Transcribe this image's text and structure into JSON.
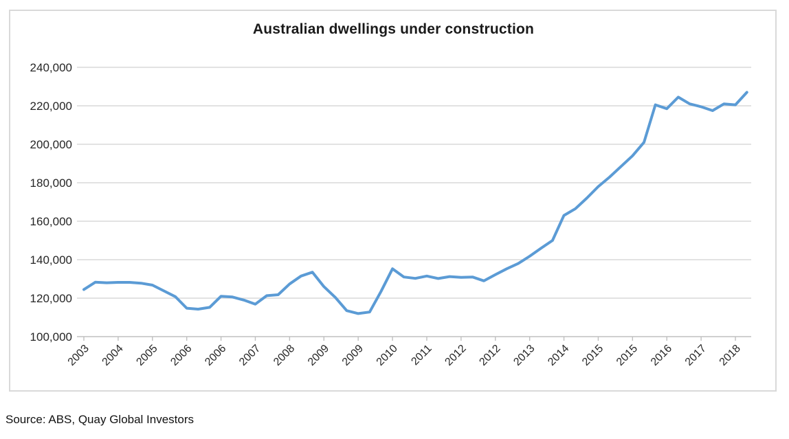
{
  "title": "Australian dwellings under construction",
  "source": "Source: ABS, Quay Global Investors",
  "colors": {
    "line": "#5B9BD5",
    "gridline": "#D9D9D9",
    "axis": "#BFBFBF",
    "frame": "#D9D9D9",
    "title_text": "#1a1a1a",
    "label_text": "#262626"
  },
  "chart_data": {
    "type": "line",
    "title": "Australian dwellings under construction",
    "xlabel": "",
    "ylabel": "",
    "ylim": [
      100000,
      240000
    ],
    "y_tick_step": 20000,
    "y_tick_labels": [
      "240,000",
      "220,000",
      "200,000",
      "180,000",
      "160,000",
      "140,000",
      "120,000",
      "100,000"
    ],
    "x_tick_labels": [
      "2003",
      "2004",
      "2005",
      "2006",
      "2006",
      "2007",
      "2008",
      "2009",
      "2009",
      "2010",
      "2011",
      "2012",
      "2012",
      "2013",
      "2014",
      "2015",
      "2015",
      "2016",
      "2017",
      "2018"
    ],
    "x_tick_every_n_points": 3,
    "grid": "horizontal",
    "legend": "none",
    "series": [
      {
        "name": "Dwellings under construction",
        "x": [
          "2003Q4",
          "2004Q1",
          "2004Q2",
          "2004Q3",
          "2004Q4",
          "2005Q1",
          "2005Q2",
          "2005Q3",
          "2005Q4",
          "2006Q1",
          "2006Q2",
          "2006Q3",
          "2006Q4",
          "2007Q1",
          "2007Q2",
          "2007Q3",
          "2007Q4",
          "2008Q1",
          "2008Q2",
          "2008Q3",
          "2008Q4",
          "2009Q1",
          "2009Q2",
          "2009Q3",
          "2009Q4",
          "2010Q1",
          "2010Q2",
          "2010Q3",
          "2010Q4",
          "2011Q1",
          "2011Q2",
          "2011Q3",
          "2011Q4",
          "2012Q1",
          "2012Q2",
          "2012Q3",
          "2012Q4",
          "2013Q1",
          "2013Q2",
          "2013Q3",
          "2013Q4",
          "2014Q1",
          "2014Q2",
          "2014Q3",
          "2014Q4",
          "2015Q1",
          "2015Q2",
          "2015Q3",
          "2015Q4",
          "2016Q1",
          "2016Q2",
          "2016Q3",
          "2016Q4",
          "2017Q1",
          "2017Q2",
          "2017Q3",
          "2017Q4",
          "2018Q1",
          "2018Q2"
        ],
        "values": [
          124500,
          128300,
          128000,
          128200,
          128200,
          127800,
          126800,
          123800,
          120800,
          114800,
          114300,
          115200,
          121000,
          120600,
          119000,
          116900,
          121300,
          121800,
          127400,
          131500,
          133500,
          126000,
          120400,
          113500,
          112000,
          112800,
          123500,
          135300,
          131000,
          130300,
          131500,
          130200,
          131200,
          130800,
          131000,
          129000,
          132200,
          135300,
          138000,
          141800,
          146000,
          150000,
          163000,
          166500,
          172000,
          178000,
          183000,
          188500,
          194000,
          201000,
          220500,
          218500,
          224500,
          221000,
          219500,
          217500,
          221000,
          220500,
          227000
        ]
      }
    ]
  }
}
